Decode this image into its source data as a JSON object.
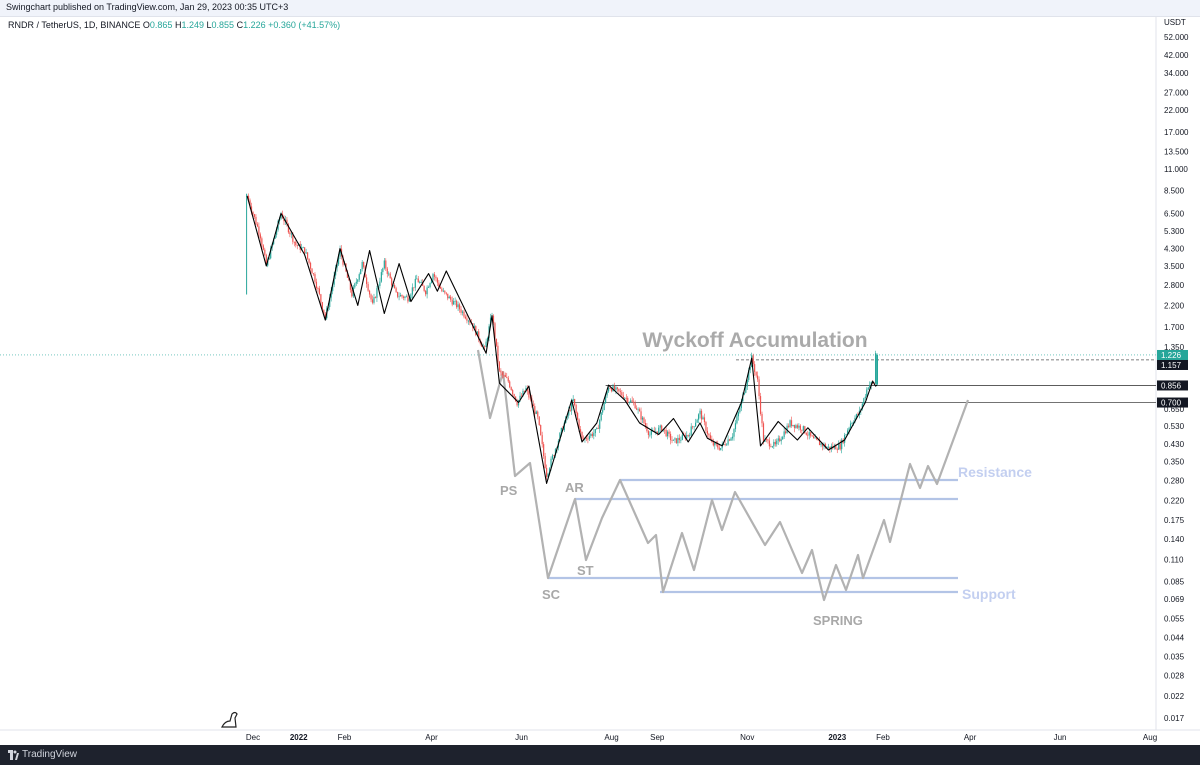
{
  "header": {
    "published_text": "Swingchart published on TradingView.com, Jan 29, 2023 00:35 UTC+3",
    "symbol": "RNDR / TetherUS, 1D, BINANCE",
    "ohlc": [
      {
        "label": "O",
        "value": "0.865"
      },
      {
        "label": "H",
        "value": "1.249"
      },
      {
        "label": "L",
        "value": "0.855"
      },
      {
        "label": "C",
        "value": "1.226"
      }
    ],
    "change": "+0.360 (+41.57%)"
  },
  "footer": {
    "brand": "TradingView"
  },
  "colors": {
    "up": "#26a69a",
    "down": "#ef5350",
    "zigzag": "#000000",
    "schematic": "#b2b2b2",
    "level_line": "#b3c4e6",
    "label_blue": "#c3cff0",
    "axis_text": "#131722"
  },
  "chart_data": {
    "type": "candlestick",
    "scale": "log",
    "currency_label": "USDT",
    "y_ticks": [
      "52.000",
      "42.000",
      "34.000",
      "27.000",
      "22.000",
      "17.000",
      "13.500",
      "11.000",
      "8.500",
      "6.500",
      "5.300",
      "4.300",
      "3.500",
      "2.800",
      "2.200",
      "1.700",
      "1.350",
      "0.650",
      "0.530",
      "0.430",
      "0.350",
      "0.280",
      "0.220",
      "0.175",
      "0.140",
      "0.110",
      "0.085",
      "0.069",
      "0.055",
      "0.044",
      "0.035",
      "0.028",
      "0.022",
      "0.017"
    ],
    "x_ticks": [
      {
        "label": "Dec",
        "date": "2021-12-01",
        "bold": false
      },
      {
        "label": "2022",
        "date": "2022-01-01",
        "bold": true
      },
      {
        "label": "Feb",
        "date": "2022-02-01",
        "bold": false
      },
      {
        "label": "Apr",
        "date": "2022-04-01",
        "bold": false
      },
      {
        "label": "Jun",
        "date": "2022-06-01",
        "bold": false
      },
      {
        "label": "Aug",
        "date": "2022-08-01",
        "bold": false
      },
      {
        "label": "Sep",
        "date": "2022-09-01",
        "bold": false
      },
      {
        "label": "Nov",
        "date": "2022-11-01",
        "bold": false
      },
      {
        "label": "2023",
        "date": "2023-01-01",
        "bold": true
      },
      {
        "label": "Feb",
        "date": "2023-02-01",
        "bold": false
      },
      {
        "label": "Apr",
        "date": "2023-04-01",
        "bold": false
      },
      {
        "label": "Jun",
        "date": "2023-06-01",
        "bold": false
      },
      {
        "label": "Aug",
        "date": "2023-08-01",
        "bold": false
      }
    ],
    "price_tags": [
      {
        "value": "1.226",
        "style": "current"
      },
      {
        "value": "1.157",
        "style": "dark"
      },
      {
        "value": "0.856",
        "style": "dark"
      },
      {
        "value": "0.700",
        "style": "dark"
      }
    ],
    "horizontal_lines": [
      {
        "price": 0.856,
        "from": "2022-07-28"
      },
      {
        "price": 0.7,
        "from": "2022-07-05"
      }
    ],
    "price_series": [
      [
        "2021-11-27",
        8.0
      ],
      [
        "2021-12-06",
        5.0
      ],
      [
        "2021-12-10",
        3.5
      ],
      [
        "2021-12-20",
        6.5
      ],
      [
        "2021-12-30",
        4.5
      ],
      [
        "2022-01-05",
        4.2
      ],
      [
        "2022-01-12",
        3.0
      ],
      [
        "2022-01-19",
        1.9
      ],
      [
        "2022-01-29",
        4.2
      ],
      [
        "2022-02-06",
        2.5
      ],
      [
        "2022-02-13",
        3.6
      ],
      [
        "2022-02-20",
        2.2
      ],
      [
        "2022-02-28",
        3.6
      ],
      [
        "2022-03-08",
        2.5
      ],
      [
        "2022-03-16",
        2.4
      ],
      [
        "2022-03-22",
        3.0
      ],
      [
        "2022-03-28",
        2.6
      ],
      [
        "2022-04-02",
        3.2
      ],
      [
        "2022-04-08",
        2.6
      ],
      [
        "2022-04-18",
        2.2
      ],
      [
        "2022-04-28",
        1.8
      ],
      [
        "2022-05-07",
        1.3
      ],
      [
        "2022-05-12",
        2.0
      ],
      [
        "2022-05-17",
        1.0
      ],
      [
        "2022-05-23",
        0.9
      ],
      [
        "2022-05-29",
        0.7
      ],
      [
        "2022-06-04",
        0.82
      ],
      [
        "2022-06-12",
        0.58
      ],
      [
        "2022-06-18",
        0.3
      ],
      [
        "2022-06-28",
        0.5
      ],
      [
        "2022-07-06",
        0.72
      ],
      [
        "2022-07-12",
        0.45
      ],
      [
        "2022-07-22",
        0.5
      ],
      [
        "2022-07-30",
        0.85
      ],
      [
        "2022-08-07",
        0.78
      ],
      [
        "2022-08-17",
        0.68
      ],
      [
        "2022-08-27",
        0.48
      ],
      [
        "2022-09-04",
        0.52
      ],
      [
        "2022-09-12",
        0.44
      ],
      [
        "2022-09-22",
        0.48
      ],
      [
        "2022-09-30",
        0.62
      ],
      [
        "2022-10-08",
        0.43
      ],
      [
        "2022-10-14",
        0.41
      ],
      [
        "2022-10-22",
        0.48
      ],
      [
        "2022-10-28",
        0.7
      ],
      [
        "2022-11-04",
        1.18
      ],
      [
        "2022-11-08",
        0.9
      ],
      [
        "2022-11-12",
        0.45
      ],
      [
        "2022-11-20",
        0.42
      ],
      [
        "2022-11-30",
        0.55
      ],
      [
        "2022-12-08",
        0.52
      ],
      [
        "2022-12-16",
        0.45
      ],
      [
        "2022-12-26",
        0.41
      ],
      [
        "2023-01-03",
        0.42
      ],
      [
        "2023-01-10",
        0.55
      ],
      [
        "2023-01-16",
        0.62
      ],
      [
        "2023-01-22",
        0.86
      ],
      [
        "2023-01-26",
        0.88
      ],
      [
        "2023-01-27",
        1.25
      ]
    ],
    "zigzag": [
      [
        "2021-11-27",
        8.0
      ],
      [
        "2021-12-10",
        3.5
      ],
      [
        "2021-12-20",
        6.5
      ],
      [
        "2022-01-05",
        4.0
      ],
      [
        "2022-01-19",
        1.85
      ],
      [
        "2022-01-29",
        4.3
      ],
      [
        "2022-02-10",
        2.2
      ],
      [
        "2022-02-18",
        4.2
      ],
      [
        "2022-02-28",
        2.0
      ],
      [
        "2022-03-10",
        3.6
      ],
      [
        "2022-03-18",
        2.3
      ],
      [
        "2022-03-30",
        3.2
      ],
      [
        "2022-04-05",
        2.6
      ],
      [
        "2022-04-11",
        3.3
      ],
      [
        "2022-05-08",
        1.25
      ],
      [
        "2022-05-12",
        1.95
      ],
      [
        "2022-05-17",
        0.88
      ],
      [
        "2022-05-30",
        0.7
      ],
      [
        "2022-06-06",
        0.85
      ],
      [
        "2022-06-18",
        0.27
      ],
      [
        "2022-07-05",
        0.72
      ],
      [
        "2022-07-12",
        0.44
      ],
      [
        "2022-07-22",
        0.55
      ],
      [
        "2022-07-30",
        0.86
      ],
      [
        "2022-08-10",
        0.72
      ],
      [
        "2022-08-20",
        0.55
      ],
      [
        "2022-09-02",
        0.48
      ],
      [
        "2022-09-12",
        0.58
      ],
      [
        "2022-09-22",
        0.44
      ],
      [
        "2022-09-30",
        0.55
      ],
      [
        "2022-10-05",
        0.46
      ],
      [
        "2022-10-15",
        0.42
      ],
      [
        "2022-10-28",
        0.7
      ],
      [
        "2022-11-04",
        1.18
      ],
      [
        "2022-11-10",
        0.42
      ],
      [
        "2022-11-22",
        0.56
      ],
      [
        "2022-12-05",
        0.45
      ],
      [
        "2022-12-12",
        0.52
      ],
      [
        "2022-12-26",
        0.4
      ],
      [
        "2023-01-06",
        0.45
      ],
      [
        "2023-01-20",
        0.7
      ],
      [
        "2023-01-25",
        0.9
      ],
      [
        "2023-01-27",
        0.85
      ],
      [
        "2023-01-28",
        0.86
      ]
    ],
    "annotations": {
      "title": "Wyckoff Accumulation",
      "ps": "PS",
      "ar": "AR",
      "st": "ST",
      "sc": "SC",
      "spring": "SPRING",
      "resistance": "Resistance",
      "support": "Support"
    }
  }
}
